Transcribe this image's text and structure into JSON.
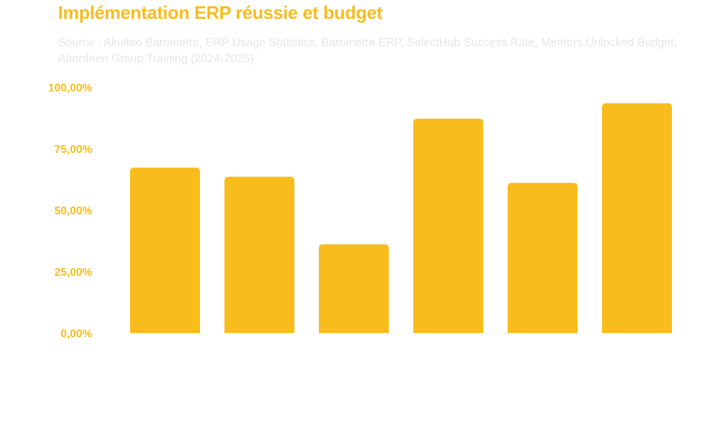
{
  "chart_data": {
    "type": "bar",
    "title": "Implémentation ERP réussie et budget",
    "subtitle": "Source : Akuiteo Barometre, ERP Usage Statistics, Barometre ERP, SelectHub Success Rate, Mentors Unlocked Budget, Aberdeen Group Training (2024-2025)",
    "categories": [
      "",
      "",
      "",
      "",
      "",
      ""
    ],
    "values": [
      67.3,
      63.6,
      36.1,
      87.2,
      61.1,
      93.5
    ],
    "ylim": [
      0,
      100
    ],
    "yticks": [
      0,
      25,
      50,
      75,
      100
    ],
    "ytick_labels": [
      "0,00%",
      "25,00%",
      "50,00%",
      "75,00%",
      "100,00%"
    ],
    "xlabel": "",
    "ylabel": "",
    "grid": false,
    "colors": {
      "bar": "#F8BC1C",
      "title": "#F8BC1C",
      "subtitle": "#E6E6E6"
    }
  }
}
